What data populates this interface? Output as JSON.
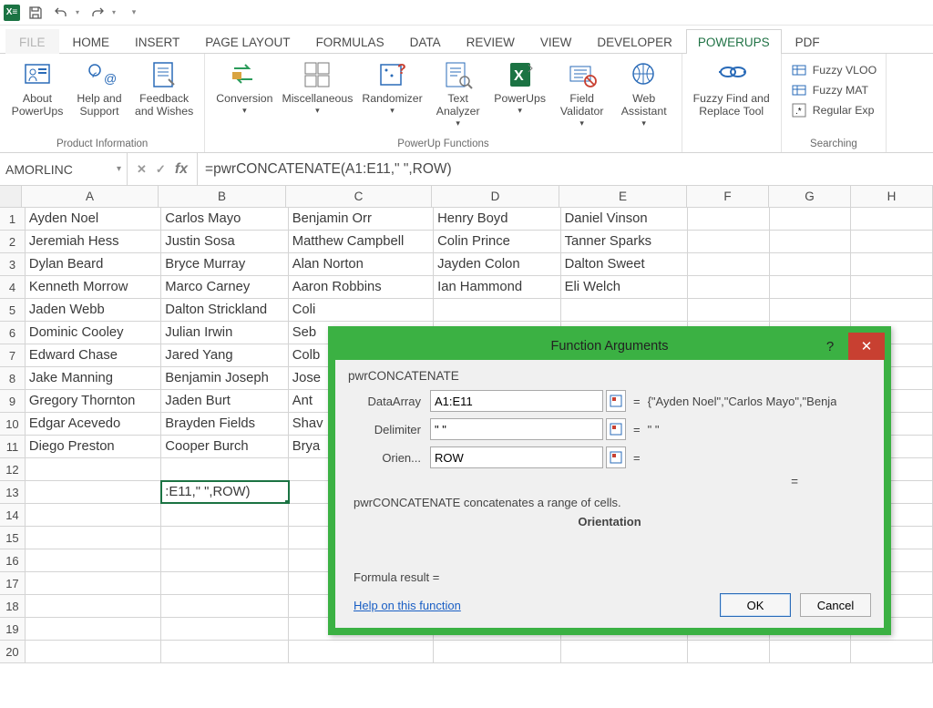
{
  "colors": {
    "excel_green": "#217346",
    "ribbon_border": "#d4d4d4",
    "dialog_border": "#3bb143",
    "close_red": "#c84031",
    "link_blue": "#1a5fc4"
  },
  "tabs": {
    "file": "FILE",
    "items": [
      "HOME",
      "INSERT",
      "PAGE LAYOUT",
      "FORMULAS",
      "DATA",
      "REVIEW",
      "VIEW",
      "DEVELOPER",
      "POWERUPS",
      "PDF"
    ],
    "active_index": 8
  },
  "ribbon": {
    "groups": [
      {
        "label": "Product Information",
        "buttons": [
          {
            "cap": "About\nPowerUps",
            "icon": "about",
            "dd": false
          },
          {
            "cap": "Help and\nSupport",
            "icon": "help",
            "dd": false
          },
          {
            "cap": "Feedback\nand Wishes",
            "icon": "feedback",
            "dd": false
          }
        ]
      },
      {
        "label": "PowerUp Functions",
        "buttons": [
          {
            "cap": "Conversion",
            "icon": "convert",
            "dd": true
          },
          {
            "cap": "Miscellaneous",
            "icon": "misc",
            "dd": true
          },
          {
            "cap": "Randomizer",
            "icon": "random",
            "dd": true
          },
          {
            "cap": "Text\nAnalyzer",
            "icon": "text",
            "dd": true
          },
          {
            "cap": "PowerUps",
            "icon": "power",
            "dd": true
          },
          {
            "cap": "Field\nValidator",
            "icon": "field",
            "dd": true
          },
          {
            "cap": "Web\nAssistant",
            "icon": "web",
            "dd": true
          }
        ]
      },
      {
        "label": "",
        "buttons": [
          {
            "cap": "Fuzzy Find and\nReplace Tool",
            "icon": "fuzzy",
            "dd": false
          }
        ]
      },
      {
        "label": "Searching",
        "small": [
          {
            "cap": "Fuzzy VLOO",
            "icon": "fvl"
          },
          {
            "cap": "Fuzzy MAT",
            "icon": "fma"
          },
          {
            "cap": "Regular Exp",
            "icon": "rex"
          }
        ]
      }
    ]
  },
  "namebox": "AMORLINC",
  "formula": "=pwrCONCATENATE(A1:E11,\" \",ROW)",
  "columns": [
    {
      "letter": "A",
      "class": "cA"
    },
    {
      "letter": "B",
      "class": "cB"
    },
    {
      "letter": "C",
      "class": "cC"
    },
    {
      "letter": "D",
      "class": "cD"
    },
    {
      "letter": "E",
      "class": "cE"
    },
    {
      "letter": "F",
      "class": "cF"
    },
    {
      "letter": "G",
      "class": "cG"
    },
    {
      "letter": "H",
      "class": "cH"
    }
  ],
  "active_cell": {
    "row": 13,
    "col": 1,
    "display": ":E11,\" \",ROW)"
  },
  "grid_rows": 20,
  "data": [
    [
      "Ayden Noel",
      "Carlos Mayo",
      "Benjamin Orr",
      "Henry Boyd",
      "Daniel Vinson",
      "",
      "",
      ""
    ],
    [
      "Jeremiah Hess",
      "Justin Sosa",
      "Matthew Campbell",
      "Colin Prince",
      "Tanner Sparks",
      "",
      "",
      ""
    ],
    [
      "Dylan Beard",
      "Bryce Murray",
      "Alan Norton",
      "Jayden Colon",
      "Dalton Sweet",
      "",
      "",
      ""
    ],
    [
      "Kenneth Morrow",
      "Marco Carney",
      "Aaron Robbins",
      "Ian Hammond",
      "Eli Welch",
      "",
      "",
      ""
    ],
    [
      "Jaden Webb",
      "Dalton Strickland",
      "Coli",
      "",
      "",
      "",
      "",
      ""
    ],
    [
      "Dominic Cooley",
      "Julian Irwin",
      "Seb",
      "",
      "",
      "",
      "",
      ""
    ],
    [
      "Edward Chase",
      "Jared Yang",
      "Colb",
      "",
      "",
      "",
      "",
      ""
    ],
    [
      "Jake Manning",
      "Benjamin Joseph",
      "Jose",
      "",
      "",
      "",
      "",
      ""
    ],
    [
      "Gregory Thornton",
      "Jaden Burt",
      "Ant",
      "",
      "",
      "",
      "",
      ""
    ],
    [
      "Edgar Acevedo",
      "Brayden Fields",
      "Shav",
      "",
      "",
      "",
      "",
      ""
    ],
    [
      "Diego Preston",
      "Cooper Burch",
      "Brya",
      "",
      "",
      "",
      "",
      ""
    ]
  ],
  "dialog": {
    "title": "Function Arguments",
    "fname": "pwrCONCATENATE",
    "args": [
      {
        "label": "DataArray",
        "value": "A1:E11",
        "preview": "{\"Ayden Noel\",\"Carlos Mayo\",\"Benja"
      },
      {
        "label": "Delimiter",
        "value": "\" \"",
        "preview": "\" \""
      },
      {
        "label": "Orien...",
        "value": "ROW",
        "preview": ""
      }
    ],
    "result_eq": "=",
    "desc": "pwrCONCATENATE concatenates a range of cells.",
    "subdesc": "Orientation",
    "formula_result_label": "Formula result =",
    "help_link": "Help on this function",
    "ok": "OK",
    "cancel": "Cancel"
  }
}
